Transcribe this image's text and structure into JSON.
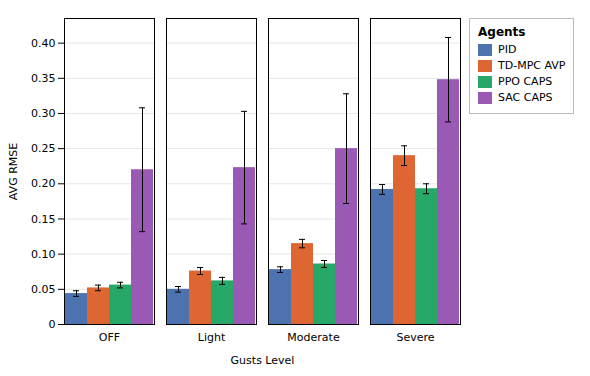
{
  "chart_data": {
    "type": "bar",
    "categories": [
      "OFF",
      "Light",
      "Moderate",
      "Severe"
    ],
    "series": [
      {
        "name": "PID",
        "color": "#4c72b0",
        "values": [
          0.044,
          0.05,
          0.078,
          0.192
        ],
        "errors": [
          0.004,
          0.004,
          0.004,
          0.007
        ]
      },
      {
        "name": "TD-MPC AVP",
        "color": "#dd6633",
        "values": [
          0.052,
          0.076,
          0.115,
          0.24
        ],
        "errors": [
          0.004,
          0.005,
          0.006,
          0.014
        ]
      },
      {
        "name": "PPO CAPS",
        "color": "#27a869",
        "values": [
          0.056,
          0.062,
          0.086,
          0.193
        ],
        "errors": [
          0.004,
          0.005,
          0.005,
          0.007
        ]
      },
      {
        "name": "SAC CAPS",
        "color": "#9b59b6",
        "values": [
          0.22,
          0.223,
          0.25,
          0.348
        ],
        "errors": [
          0.088,
          0.08,
          0.078,
          0.06
        ]
      }
    ],
    "xlabel": "Gusts Level",
    "ylabel": "AVG RMSE",
    "legend_title": "Agents",
    "legend": "upper right",
    "ylim": [
      0,
      0.435
    ],
    "yticks": [
      0,
      0.05,
      {
        "value": 0.1,
        "label": "0.10"
      },
      0.15,
      {
        "value": 0.2,
        "label": "0.20"
      },
      0.25,
      {
        "value": 0.3,
        "label": "0.30"
      },
      0.35,
      {
        "value": 0.4,
        "label": "0.40"
      }
    ],
    "grid": true
  }
}
